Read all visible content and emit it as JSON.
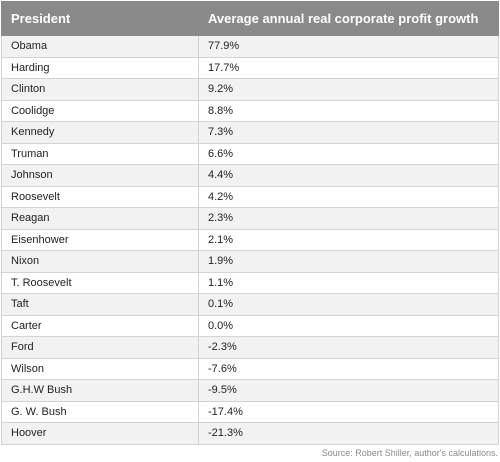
{
  "chart_data": {
    "type": "table",
    "columns": [
      "President",
      "Average annual real corporate profit growth"
    ],
    "rows": [
      [
        "Obama",
        "77.9%"
      ],
      [
        "Harding",
        "17.7%"
      ],
      [
        "Clinton",
        "9.2%"
      ],
      [
        "Coolidge",
        "8.8%"
      ],
      [
        "Kennedy",
        "7.3%"
      ],
      [
        "Truman",
        "6.6%"
      ],
      [
        "Johnson",
        "4.4%"
      ],
      [
        "Roosevelt",
        "4.2%"
      ],
      [
        "Reagan",
        "2.3%"
      ],
      [
        "Eisenhower",
        "2.1%"
      ],
      [
        "Nixon",
        "1.9%"
      ],
      [
        "T. Roosevelt",
        "1.1%"
      ],
      [
        "Taft",
        "0.1%"
      ],
      [
        "Carter",
        "0.0%"
      ],
      [
        "Ford",
        "-2.3%"
      ],
      [
        "Wilson",
        "-7.6%"
      ],
      [
        "G.H.W Bush",
        "-9.5%"
      ],
      [
        "G. W. Bush",
        "-17.4%"
      ],
      [
        "Hoover",
        "-21.3%"
      ]
    ],
    "source": "Source: Robert Shiller, author's calculations."
  },
  "colors": {
    "header_bg": "#8a8a8a",
    "header_text": "#ffffff",
    "row_alt_bg": "#f2f2f2",
    "grid": "#d4d4d4"
  }
}
